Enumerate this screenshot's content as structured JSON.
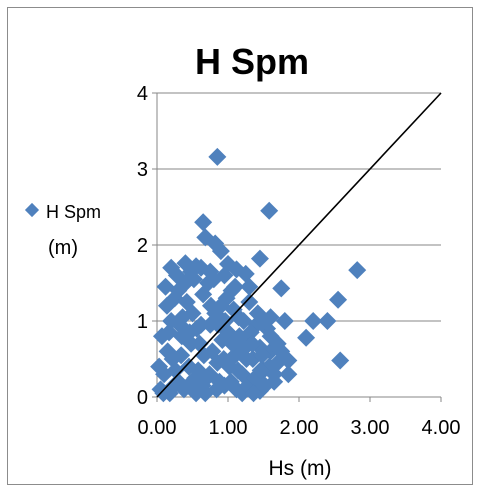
{
  "chart_data": {
    "type": "scatter",
    "title": "H Spm",
    "xlabel": "Hs (m)",
    "ylabel": "",
    "xlim": [
      0,
      4
    ],
    "ylim": [
      0,
      4
    ],
    "x_ticks": [
      "0.00",
      "1.00",
      "2.00",
      "3.00",
      "4.00"
    ],
    "y_ticks": [
      "0",
      "1",
      "2",
      "3",
      "4"
    ],
    "grid": "horizontal",
    "legend": {
      "position": "left",
      "entries": [
        {
          "label_line1": "H Spm",
          "label_line2": "(m)"
        }
      ]
    },
    "reference_line": {
      "from": [
        0,
        0
      ],
      "to": [
        4,
        4
      ],
      "color": "#000000"
    },
    "series": [
      {
        "name": "H Spm (m)",
        "color": "#4F81BD",
        "points": [
          [
            0.85,
            3.16
          ],
          [
            1.58,
            2.45
          ],
          [
            0.65,
            2.3
          ],
          [
            0.68,
            2.1
          ],
          [
            0.82,
            2.02
          ],
          [
            0.9,
            1.92
          ],
          [
            1.45,
            1.82
          ],
          [
            1.0,
            1.75
          ],
          [
            2.82,
            1.67
          ],
          [
            0.2,
            1.7
          ],
          [
            0.4,
            1.76
          ],
          [
            0.55,
            1.72
          ],
          [
            1.12,
            1.68
          ],
          [
            1.25,
            1.62
          ],
          [
            1.75,
            1.43
          ],
          [
            2.55,
            1.28
          ],
          [
            2.4,
            1.0
          ],
          [
            2.2,
            1.0
          ],
          [
            1.6,
            1.05
          ],
          [
            1.8,
            1.0
          ],
          [
            2.1,
            0.78
          ],
          [
            1.7,
            0.7
          ],
          [
            1.85,
            0.48
          ],
          [
            2.58,
            0.48
          ],
          [
            1.65,
            0.3
          ],
          [
            1.85,
            0.3
          ],
          [
            1.45,
            0.08
          ],
          [
            1.2,
            0.05
          ],
          [
            0.05,
            0.1
          ],
          [
            0.1,
            0.3
          ],
          [
            0.15,
            0.6
          ],
          [
            0.2,
            1.0
          ],
          [
            0.25,
            1.3
          ],
          [
            0.3,
            0.2
          ],
          [
            0.35,
            0.8
          ],
          [
            0.4,
            1.5
          ],
          [
            0.45,
            0.4
          ],
          [
            0.5,
            1.1
          ],
          [
            0.55,
            0.05
          ],
          [
            0.6,
            0.7
          ],
          [
            0.65,
            1.35
          ],
          [
            0.7,
            0.25
          ],
          [
            0.75,
            0.95
          ],
          [
            0.8,
            1.55
          ],
          [
            0.85,
            0.45
          ],
          [
            0.9,
            1.2
          ],
          [
            0.95,
            0.15
          ],
          [
            1.0,
            0.85
          ],
          [
            1.05,
            1.4
          ],
          [
            1.1,
            0.55
          ],
          [
            1.15,
            1.05
          ],
          [
            1.2,
            0.3
          ],
          [
            1.25,
            0.75
          ],
          [
            1.3,
            1.25
          ],
          [
            1.35,
            0.5
          ],
          [
            1.4,
            0.95
          ],
          [
            1.45,
            0.65
          ],
          [
            1.5,
            0.35
          ],
          [
            1.55,
            0.9
          ],
          [
            1.6,
            0.6
          ],
          [
            1.65,
            0.2
          ],
          [
            1.7,
            0.45
          ],
          [
            0.12,
            1.45
          ],
          [
            0.18,
            0.05
          ],
          [
            0.22,
            0.5
          ],
          [
            0.28,
            1.6
          ],
          [
            0.32,
            0.95
          ],
          [
            0.38,
            0.1
          ],
          [
            0.42,
            1.25
          ],
          [
            0.48,
            0.7
          ],
          [
            0.52,
            1.55
          ],
          [
            0.58,
            0.35
          ],
          [
            0.62,
            0.95
          ],
          [
            0.68,
            0.05
          ],
          [
            0.72,
            1.5
          ],
          [
            0.78,
            0.6
          ],
          [
            0.82,
            1.1
          ],
          [
            0.88,
            0.2
          ],
          [
            0.92,
            0.75
          ],
          [
            0.98,
            1.3
          ],
          [
            1.02,
            0.4
          ],
          [
            1.08,
            1.15
          ],
          [
            1.12,
            0.1
          ],
          [
            1.18,
            0.6
          ],
          [
            1.22,
            1.0
          ],
          [
            1.28,
            0.15
          ],
          [
            1.32,
            0.85
          ],
          [
            1.38,
            0.25
          ],
          [
            1.42,
            1.1
          ],
          [
            1.48,
            0.55
          ],
          [
            1.52,
            0.15
          ],
          [
            1.58,
            0.4
          ],
          [
            0.07,
            0.8
          ],
          [
            0.14,
            1.2
          ],
          [
            0.26,
            0.35
          ],
          [
            0.34,
            0.55
          ],
          [
            0.46,
            0.85
          ],
          [
            0.54,
            0.25
          ],
          [
            0.66,
            0.55
          ],
          [
            0.74,
            0.3
          ],
          [
            0.86,
            0.95
          ],
          [
            0.94,
            0.5
          ],
          [
            1.06,
            0.7
          ],
          [
            1.14,
            0.35
          ],
          [
            1.26,
            0.5
          ],
          [
            1.34,
            0.7
          ],
          [
            1.46,
            0.35
          ],
          [
            0.03,
            0.4
          ],
          [
            0.09,
            0.05
          ],
          [
            0.17,
            0.85
          ],
          [
            0.24,
            0.15
          ],
          [
            0.36,
            1.05
          ],
          [
            0.44,
            0.15
          ],
          [
            0.56,
            0.9
          ],
          [
            0.64,
            0.15
          ],
          [
            0.76,
            1.2
          ],
          [
            0.84,
            0.1
          ],
          [
            0.96,
            1.0
          ],
          [
            1.04,
            0.2
          ],
          [
            1.16,
            0.8
          ],
          [
            1.24,
            0.65
          ],
          [
            1.36,
            0.05
          ],
          [
            0.62,
            1.7
          ],
          [
            0.75,
            1.65
          ],
          [
            0.48,
            1.65
          ],
          [
            0.3,
            1.4
          ],
          [
            0.95,
            1.6
          ],
          [
            1.1,
            1.45
          ],
          [
            1.3,
            1.45
          ],
          [
            1.6,
            0.8
          ],
          [
            1.75,
            0.6
          ],
          [
            1.52,
            1.0
          ]
        ]
      }
    ]
  }
}
